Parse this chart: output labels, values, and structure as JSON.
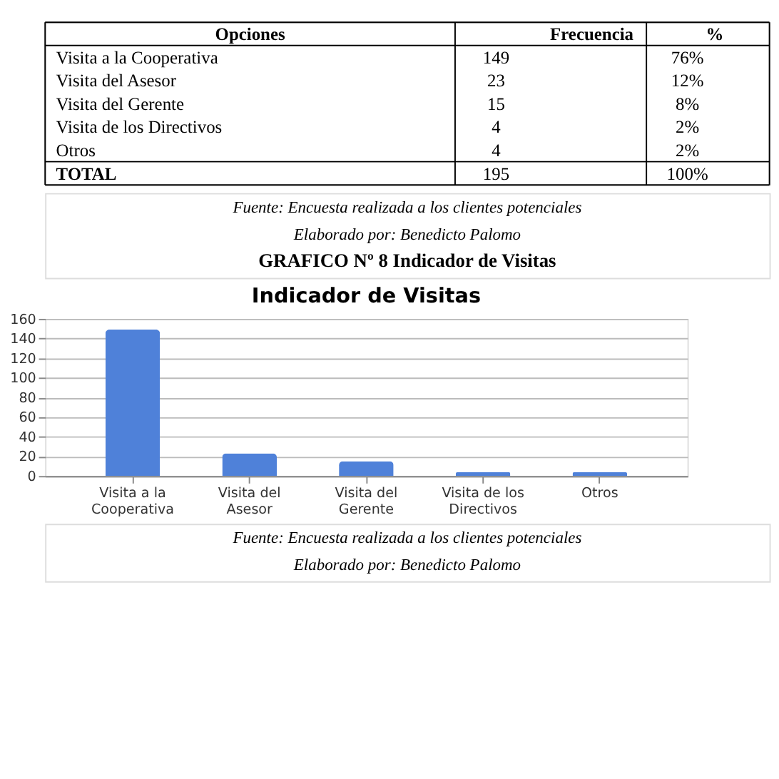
{
  "chart_data": {
    "type": "bar",
    "title": "Indicador de Visitas",
    "categories": [
      "Visita a la Cooperativa",
      "Visita del Asesor",
      "Visita del Gerente",
      "Visita de los Directivos",
      "Otros"
    ],
    "values": [
      149,
      23,
      15,
      4,
      4
    ],
    "color": "#4f81d9",
    "ylim": [
      0,
      160
    ],
    "yticks": [
      0,
      20,
      40,
      60,
      80,
      100,
      120,
      140,
      160
    ],
    "grid": "y",
    "annotations": [
      "Opciones",
      "Frecuencia",
      "%",
      "149",
      "23",
      "15",
      "4",
      "4",
      "76%",
      "12%",
      "8%",
      "2%",
      "2%",
      "TOTAL",
      "195",
      "100%",
      "Fuente: Encuesta realizada a los clientes potenciales",
      "Elaborado por: Benedicto Palomo",
      "GRAFICO Nº 8  Indicador de Visitas",
      "Fuente: Encuesta realizada a los clientes potenciales",
      "Elaborado por: Benedicto Palomo"
    ]
  }
}
